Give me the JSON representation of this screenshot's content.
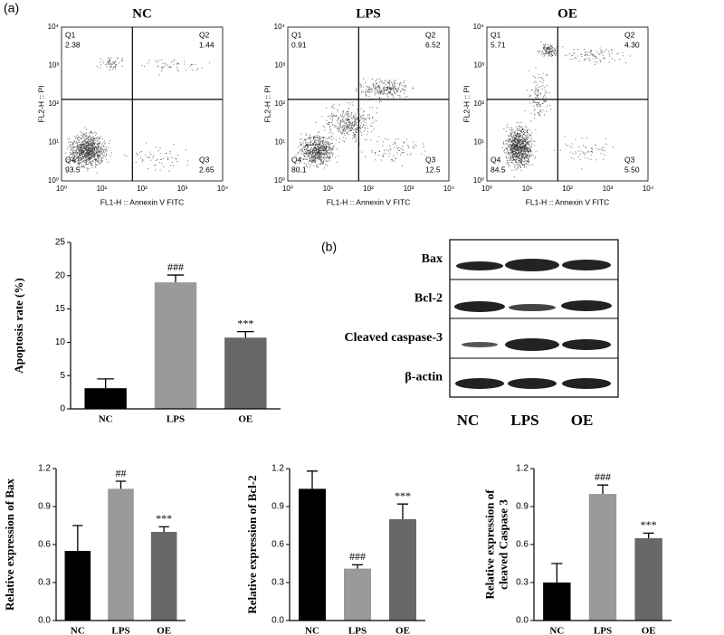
{
  "panel_labels": [
    "(a)",
    "(b)"
  ],
  "flow": {
    "x_label": "FL1-H :: Annexin V FITC",
    "y_label": "FL2-H :: PI",
    "ticks": [
      "10⁰",
      "10¹",
      "10²",
      "10³",
      "10⁴"
    ],
    "panels": [
      {
        "title": "NC",
        "quadrants": [
          {
            "name": "Q1",
            "value": "2.38"
          },
          {
            "name": "Q2",
            "value": "1.44"
          },
          {
            "name": "Q3",
            "value": "2.65"
          },
          {
            "name": "Q4",
            "value": "93.5"
          }
        ]
      },
      {
        "title": "LPS",
        "quadrants": [
          {
            "name": "Q1",
            "value": "0.91"
          },
          {
            "name": "Q2",
            "value": "6.52"
          },
          {
            "name": "Q3",
            "value": "12.5"
          },
          {
            "name": "Q4",
            "value": "80.1"
          }
        ]
      },
      {
        "title": "OE",
        "quadrants": [
          {
            "name": "Q1",
            "value": "5.71"
          },
          {
            "name": "Q2",
            "value": "4.30"
          },
          {
            "name": "Q3",
            "value": "5.50"
          },
          {
            "name": "Q4",
            "value": "84.5"
          }
        ]
      }
    ]
  },
  "blot": {
    "rows": [
      "Bax",
      "Bcl-2",
      "Cleaved caspase-3",
      "β-actin"
    ],
    "columns": [
      "NC",
      "LPS",
      "OE"
    ]
  },
  "chart_data": [
    {
      "type": "bar",
      "y_label": [
        "Apoptosis rate (%)"
      ],
      "categories": [
        "NC",
        "LPS",
        "OE"
      ],
      "values": [
        3.1,
        19.0,
        10.7
      ],
      "errors": [
        1.4,
        1.1,
        0.9
      ],
      "annotations": [
        null,
        "###",
        "***"
      ],
      "colors": [
        "#000000",
        "#9a9a9a",
        "#686868"
      ],
      "ylim": [
        0,
        25
      ],
      "yticks": [
        0,
        5,
        10,
        15,
        20,
        25
      ]
    },
    {
      "type": "bar",
      "y_label": [
        "Relative expression of Bax"
      ],
      "categories": [
        "NC",
        "LPS",
        "OE"
      ],
      "values": [
        0.55,
        1.04,
        0.7
      ],
      "errors": [
        0.2,
        0.06,
        0.04
      ],
      "annotations": [
        null,
        "##",
        "***"
      ],
      "colors": [
        "#000000",
        "#9a9a9a",
        "#686868"
      ],
      "ylim": [
        0,
        1.2
      ],
      "yticks": [
        {
          "value": 0,
          "label": "0.0"
        },
        0.3,
        0.6,
        0.9,
        1.2
      ]
    },
    {
      "type": "bar",
      "y_label": [
        "Relative expression of Bcl-2"
      ],
      "categories": [
        "NC",
        "LPS",
        "OE"
      ],
      "values": [
        1.04,
        0.41,
        0.8
      ],
      "errors": [
        0.14,
        0.03,
        0.12
      ],
      "annotations": [
        null,
        "###",
        "***"
      ],
      "colors": [
        "#000000",
        "#9a9a9a",
        "#686868"
      ],
      "ylim": [
        0,
        1.2
      ],
      "yticks": [
        {
          "value": 0,
          "label": "0.0"
        },
        0.3,
        0.6,
        0.9,
        1.2
      ]
    },
    {
      "type": "bar",
      "y_label": [
        "Relative expression of",
        "cleaved Caspase 3"
      ],
      "categories": [
        "NC",
        "LPS",
        "OE"
      ],
      "values": [
        0.3,
        1.0,
        0.65
      ],
      "errors": [
        0.15,
        0.07,
        0.04
      ],
      "annotations": [
        null,
        "###",
        "***"
      ],
      "colors": [
        "#000000",
        "#9a9a9a",
        "#686868"
      ],
      "ylim": [
        0,
        1.2
      ],
      "yticks": [
        {
          "value": 0,
          "label": "0.0"
        },
        0.3,
        0.6,
        0.9,
        1.2
      ]
    }
  ]
}
